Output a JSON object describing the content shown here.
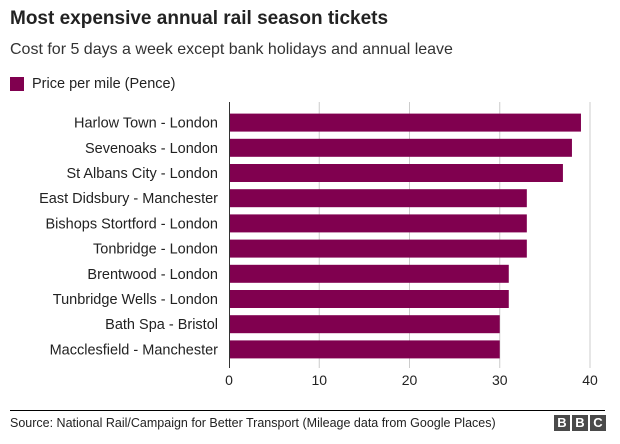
{
  "header": {
    "title": "Most expensive annual rail season tickets",
    "subtitle": "Cost for 5 days a week except bank holidays and annual leave"
  },
  "footer": {
    "source": "Source: National Rail/Campaign for Better Transport (Mileage data from Google Places)",
    "logo_letters": [
      "B",
      "B",
      "C"
    ]
  },
  "colors": {
    "bar": "#80004f",
    "grid": "#cccccc",
    "text": "#222222"
  },
  "chart_data": {
    "type": "bar",
    "orientation": "horizontal",
    "title": "Most expensive annual rail season tickets",
    "subtitle": "Cost for 5 days a week except bank holidays and annual leave",
    "legend": [
      "Price per mile (Pence)"
    ],
    "legend_position": "top-left",
    "categories": [
      "Harlow Town - London",
      "Sevenoaks - London",
      "St Albans City - London",
      "East Didsbury - Manchester",
      "Bishops Stortford - London",
      "Tonbridge - London",
      "Brentwood - London",
      "Tunbridge Wells - London",
      "Bath Spa - Bristol",
      "Macclesfield - Manchester"
    ],
    "series": [
      {
        "name": "Price per mile (Pence)",
        "values": [
          39,
          38,
          37,
          33,
          33,
          33,
          31,
          31,
          30,
          30
        ]
      }
    ],
    "xlim": [
      0,
      40
    ],
    "xticks": [
      0,
      10,
      20,
      30,
      40
    ],
    "grid": true,
    "xlabel": "",
    "ylabel": ""
  }
}
